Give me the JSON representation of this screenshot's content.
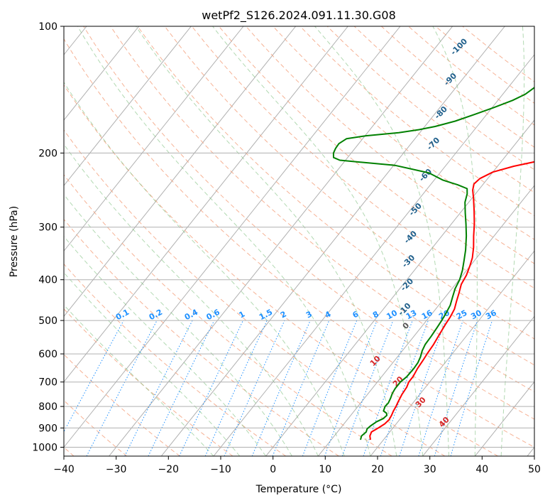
{
  "chart_data": {
    "type": "line",
    "subtype": "skew-t log-p diagram",
    "title": "wetPf2_S126.2024.091.11.30.G08",
    "xlabel": "Temperature (°C)",
    "ylabel": "Pressure (hPa)",
    "xlim": [
      -40,
      50
    ],
    "ylim": [
      1050,
      100
    ],
    "y_scale": "log",
    "x_ticks": [
      -40,
      -30,
      -20,
      -10,
      0,
      10,
      20,
      30,
      40,
      50
    ],
    "y_ticks": [
      100,
      200,
      300,
      400,
      500,
      600,
      700,
      800,
      900,
      1000
    ],
    "grid": true,
    "series": [
      {
        "color": "#ff0000",
        "points": [
          [
            17.5,
            960
          ],
          [
            16.8,
            940
          ],
          [
            16.5,
            920
          ],
          [
            17.2,
            900
          ],
          [
            17.8,
            880
          ],
          [
            18.0,
            860
          ],
          [
            17.8,
            840
          ],
          [
            17.5,
            820
          ],
          [
            17.3,
            800
          ],
          [
            17.0,
            780
          ],
          [
            16.6,
            750
          ],
          [
            16.4,
            720
          ],
          [
            16.0,
            700
          ],
          [
            16.0,
            680
          ],
          [
            15.6,
            650
          ],
          [
            15.4,
            620
          ],
          [
            15.2,
            600
          ],
          [
            15.0,
            570
          ],
          [
            14.6,
            540
          ],
          [
            14.2,
            510
          ],
          [
            14.0,
            490
          ],
          [
            13.6,
            470
          ],
          [
            12.8,
            450
          ],
          [
            12.0,
            430
          ],
          [
            11.1,
            410
          ],
          [
            10.7,
            390
          ],
          [
            9.9,
            370
          ],
          [
            9.2,
            355
          ],
          [
            7.8,
            335
          ],
          [
            6.1,
            315
          ],
          [
            4.4,
            295
          ],
          [
            2.4,
            275
          ],
          [
            0.4,
            257
          ],
          [
            -1.1,
            245
          ],
          [
            -1.8,
            237
          ],
          [
            -1.5,
            230
          ],
          [
            0.0,
            222
          ],
          [
            3.1,
            215
          ],
          [
            7.6,
            208
          ],
          [
            10.4,
            203
          ],
          [
            12.5,
            197
          ],
          [
            13.7,
            190
          ],
          [
            14.3,
            182
          ],
          [
            14.6,
            172
          ],
          [
            15.0,
            160
          ],
          [
            15.6,
            148
          ],
          [
            15.9,
            137
          ],
          [
            15.5,
            128
          ],
          [
            15.6,
            120
          ],
          [
            16.5,
            113
          ],
          [
            17.3,
            105
          ],
          [
            17.6,
            100
          ]
        ]
      },
      {
        "color": "#008000",
        "points": [
          [
            15.6,
            960
          ],
          [
            15.4,
            950
          ],
          [
            15.2,
            940
          ],
          [
            15.5,
            920
          ],
          [
            15.2,
            905
          ],
          [
            15.4,
            890
          ],
          [
            15.9,
            870
          ],
          [
            16.7,
            855
          ],
          [
            16.9,
            840
          ],
          [
            16.5,
            830
          ],
          [
            15.6,
            820
          ],
          [
            15.2,
            800
          ],
          [
            15.3,
            785
          ],
          [
            15.0,
            765
          ],
          [
            14.6,
            745
          ],
          [
            14.4,
            725
          ],
          [
            14.4,
            700
          ],
          [
            14.8,
            680
          ],
          [
            14.9,
            650
          ],
          [
            14.8,
            630
          ],
          [
            14.4,
            610
          ],
          [
            13.8,
            590
          ],
          [
            13.4,
            570
          ],
          [
            13.3,
            545
          ],
          [
            13.1,
            520
          ],
          [
            12.9,
            500
          ],
          [
            12.6,
            480
          ],
          [
            12.2,
            460
          ],
          [
            11.4,
            440
          ],
          [
            10.6,
            420
          ],
          [
            10.1,
            400
          ],
          [
            9.2,
            380
          ],
          [
            8.0,
            360
          ],
          [
            6.7,
            340
          ],
          [
            4.7,
            315
          ],
          [
            2.8,
            295
          ],
          [
            1.0,
            278
          ],
          [
            -0.7,
            262
          ],
          [
            -1.6,
            250
          ],
          [
            -2.4,
            243
          ],
          [
            -4.8,
            238
          ],
          [
            -8.3,
            232
          ],
          [
            -12.1,
            223
          ],
          [
            -19.7,
            214
          ],
          [
            -31.1,
            208
          ],
          [
            -32.7,
            205
          ],
          [
            -33.4,
            200
          ],
          [
            -33.7,
            195
          ],
          [
            -33.8,
            190
          ],
          [
            -33.1,
            185
          ],
          [
            -29.8,
            182
          ],
          [
            -24.0,
            179
          ],
          [
            -20.6,
            176
          ],
          [
            -18.0,
            173
          ],
          [
            -15.0,
            168
          ],
          [
            -12.3,
            162
          ],
          [
            -9.7,
            156
          ],
          [
            -7.2,
            150
          ],
          [
            -5.7,
            145
          ],
          [
            -5.0,
            140
          ],
          [
            -3.9,
            134
          ],
          [
            -2.7,
            128
          ],
          [
            -2.4,
            124
          ],
          [
            -1.4,
            118
          ],
          [
            -0.3,
            112
          ],
          [
            0.8,
            107
          ],
          [
            2.0,
            103
          ],
          [
            3.1,
            100
          ]
        ]
      }
    ],
    "mixing_ratio_labels": [
      "0.1",
      "0.2",
      "0.4",
      "0.6",
      "1",
      "1.5",
      "2",
      "3",
      "4",
      "6",
      "8",
      "10",
      "13",
      "16",
      "20",
      "25",
      "30",
      "36"
    ],
    "mixing_ratio_values": [
      0.1,
      0.2,
      0.4,
      0.6,
      1,
      1.5,
      2,
      3,
      4,
      6,
      8,
      10,
      13,
      16,
      20,
      25,
      30,
      36
    ],
    "moist_adiabat_labels": [
      "-100",
      "-90",
      "-80",
      "-70",
      "-60",
      "-50",
      "-40",
      "-30",
      "-20",
      "-10"
    ],
    "moist_adiabat_values": [
      -100,
      -90,
      -80,
      -70,
      -60,
      -50,
      -40,
      -30,
      -20,
      -10
    ],
    "zero_label": "0",
    "dry_adiabat_labels": [
      "10",
      "20",
      "30",
      "40"
    ],
    "dry_adiabat_values": [
      10,
      20,
      30,
      40
    ]
  }
}
